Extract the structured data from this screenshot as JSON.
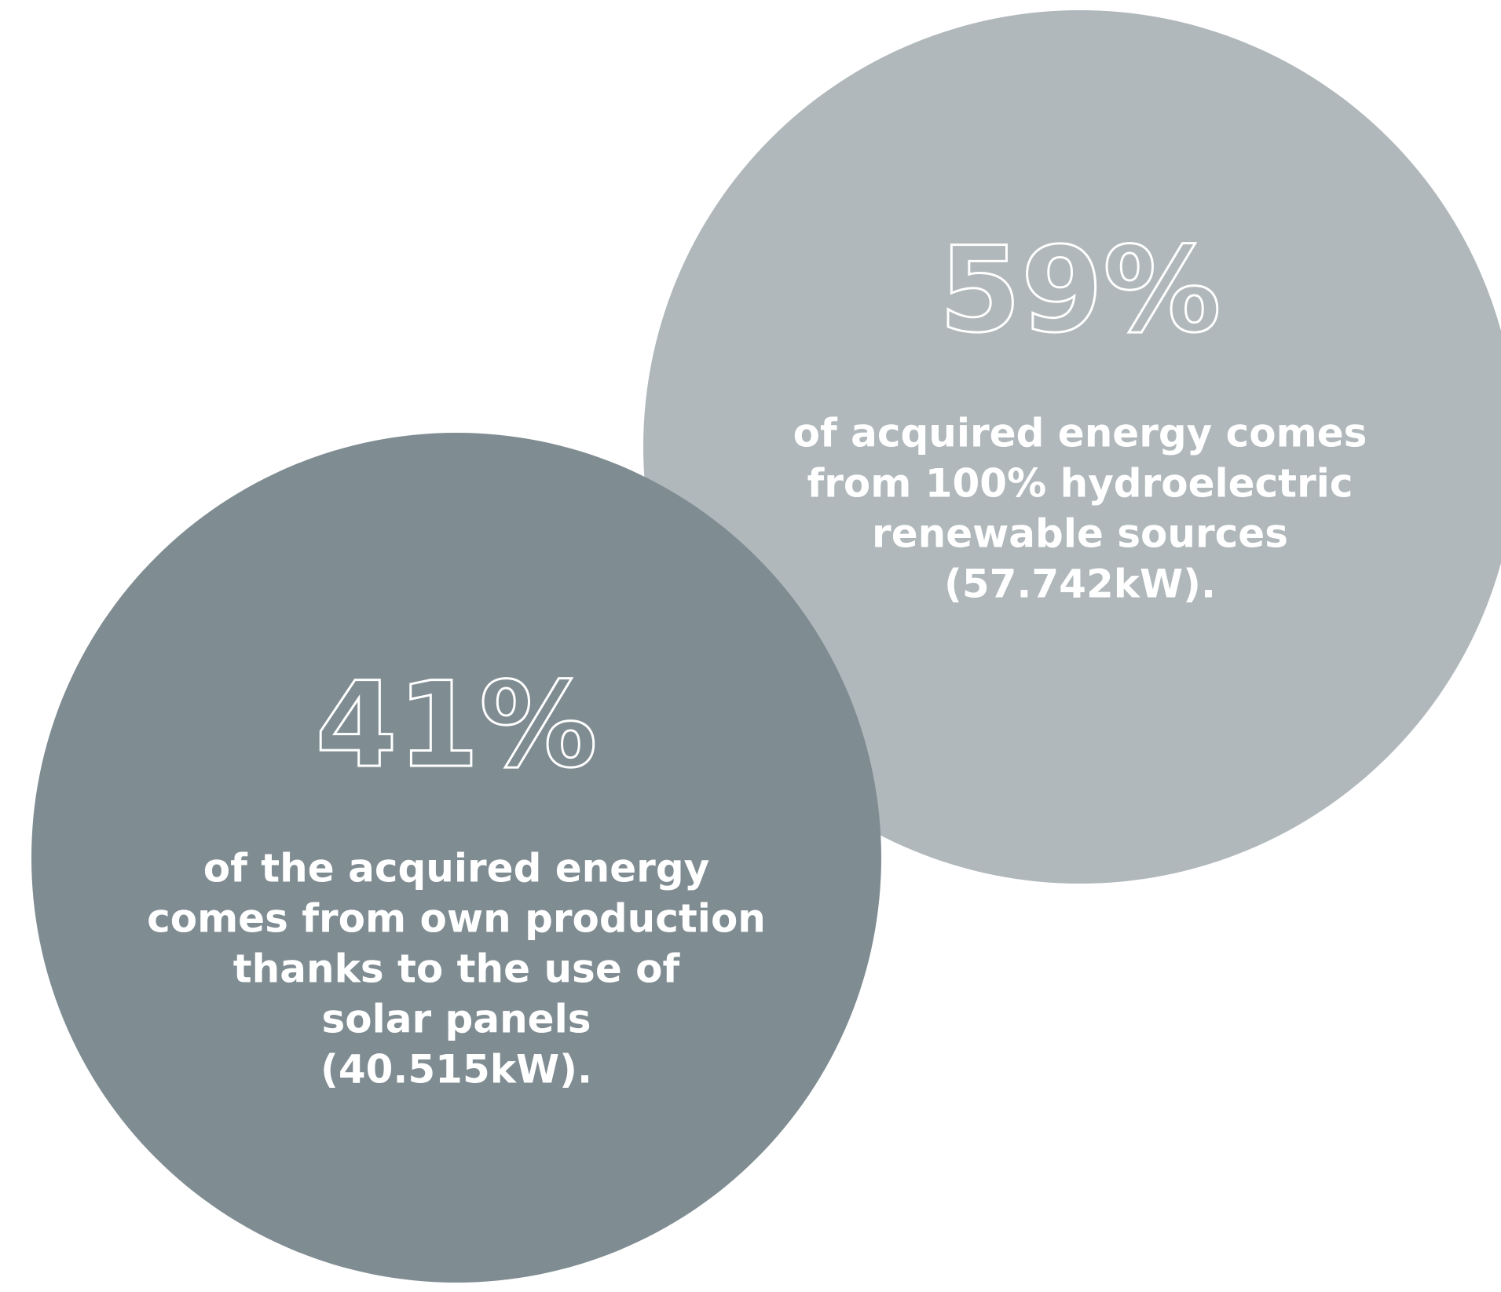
{
  "stats": [
    {
      "value": "59%",
      "description": [
        "of acquired energy comes",
        "from 100% hydroelectric",
        "renewable sources",
        "(57.742kW)."
      ]
    },
    {
      "value": "41%",
      "description": [
        "of the acquired energy",
        "comes from own production",
        "thanks to the use of",
        "solar panels",
        "(40.515kW)."
      ]
    }
  ]
}
